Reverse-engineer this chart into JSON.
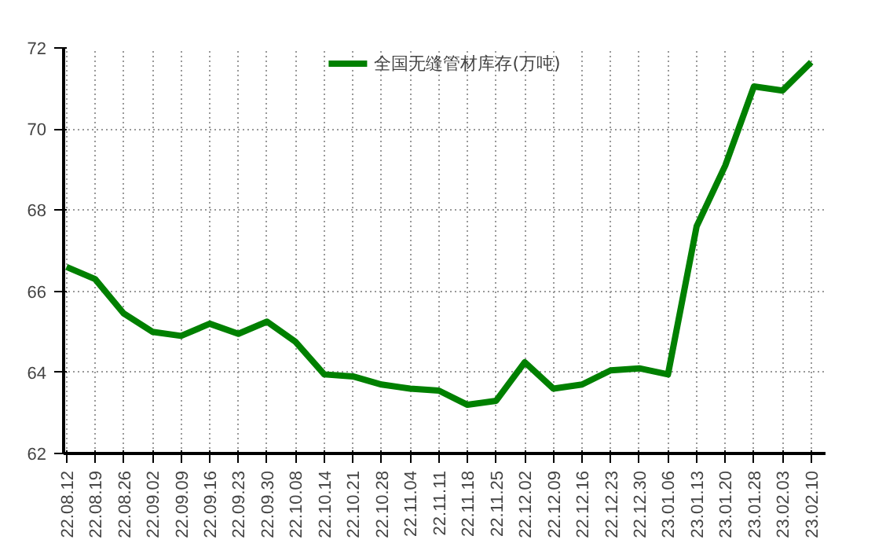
{
  "chart_data": {
    "type": "line",
    "categories": [
      "22.08.12",
      "22.08.19",
      "22.08.26",
      "22.09.02",
      "22.09.09",
      "22.09.16",
      "22.09.23",
      "22.09.30",
      "22.10.08",
      "22.10.14",
      "22.10.21",
      "22.10.28",
      "22.11.04",
      "22.11.11",
      "22.11.18",
      "22.11.25",
      "22.12.02",
      "22.12.09",
      "22.12.16",
      "22.12.23",
      "22.12.30",
      "23.01.06",
      "23.01.13",
      "23.01.20",
      "23.01.28",
      "23.02.03",
      "23.02.10"
    ],
    "series": [
      {
        "name": "全国无缝管材库存(万吨)",
        "color": "#008000",
        "values": [
          66.6,
          66.3,
          65.45,
          65.0,
          64.9,
          65.2,
          64.95,
          65.25,
          64.75,
          63.95,
          63.9,
          63.7,
          63.6,
          63.55,
          63.2,
          63.3,
          64.25,
          63.6,
          63.7,
          64.05,
          64.1,
          63.95,
          67.6,
          69.1,
          71.05,
          70.95,
          71.65
        ]
      }
    ],
    "ylim": [
      62,
      72
    ],
    "yticks": [
      62,
      64,
      66,
      68,
      70,
      72
    ],
    "grid": true,
    "legend": "top",
    "marker": "none",
    "line_style": "solid"
  }
}
